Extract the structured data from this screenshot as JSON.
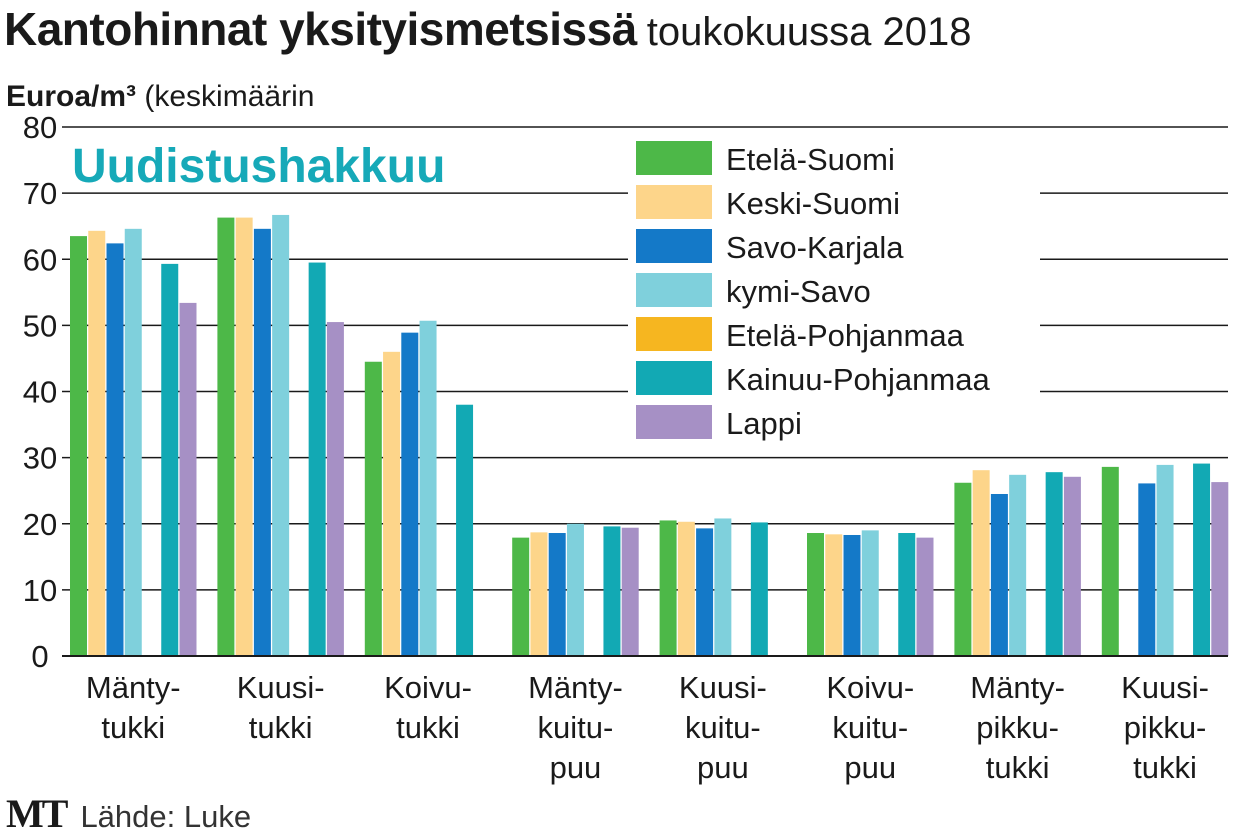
{
  "title": {
    "main": "Kantohinnat yksityismetsissä",
    "sub": "toukokuussa 2018"
  },
  "units": {
    "bold": "Euroa/m³",
    "rest": "(keskimäärin"
  },
  "footer": {
    "logo": "MT",
    "source": "Lähde: Luke"
  },
  "chart_data": {
    "type": "bar",
    "title": "Kantohinnat yksityismetsissä toukokuussa 2018",
    "panel_label": "Uudistushakkuu",
    "ylabel": "Euroa/m³ (keskimäärin",
    "xlabel": "",
    "ylim": [
      0,
      80
    ],
    "yticks": [
      0,
      10,
      20,
      30,
      40,
      50,
      60,
      70,
      80
    ],
    "grid": true,
    "legend_position": "top-right",
    "categories": [
      [
        "Mänty-",
        "tukki"
      ],
      [
        "Kuusi-",
        "tukki"
      ],
      [
        "Koivu-",
        "tukki"
      ],
      [
        "Mänty-",
        "kuitu-",
        "puu"
      ],
      [
        "Kuusi-",
        "kuitu-",
        "puu"
      ],
      [
        "Koivu-",
        "kuitu-",
        "puu"
      ],
      [
        "Mänty-",
        "pikku-",
        "tukki"
      ],
      [
        "Kuusi-",
        "pikku-",
        "tukki"
      ]
    ],
    "series": [
      {
        "name": "Etelä-Suomi",
        "color": "#4db848",
        "values": [
          63.5,
          66.3,
          44.5,
          17.9,
          20.5,
          18.6,
          26.2,
          28.6
        ]
      },
      {
        "name": "Keski-Suomi",
        "color": "#fdd58a",
        "values": [
          64.3,
          66.3,
          46.0,
          18.7,
          20.3,
          18.4,
          28.1,
          null
        ]
      },
      {
        "name": "Savo-Karjala",
        "color": "#1479c8",
        "values": [
          62.4,
          64.6,
          48.9,
          18.6,
          19.3,
          18.3,
          24.5,
          26.1
        ]
      },
      {
        "name": "kymi-Savo",
        "color": "#7fd0dc",
        "values": [
          64.6,
          66.7,
          50.7,
          20.0,
          20.8,
          19.0,
          27.4,
          28.9
        ]
      },
      {
        "name": "Etelä-Pohjanmaa",
        "color": "#f6b620",
        "values": [
          null,
          null,
          null,
          null,
          null,
          null,
          null,
          null
        ]
      },
      {
        "name": "Kainuu-Pohjanmaa",
        "color": "#12a9b4",
        "values": [
          59.3,
          59.5,
          38.0,
          19.6,
          20.2,
          18.6,
          27.8,
          29.1
        ]
      },
      {
        "name": "Lappi",
        "color": "#a690c5",
        "values": [
          53.4,
          50.5,
          null,
          19.4,
          null,
          17.9,
          27.1,
          26.3
        ]
      }
    ]
  }
}
